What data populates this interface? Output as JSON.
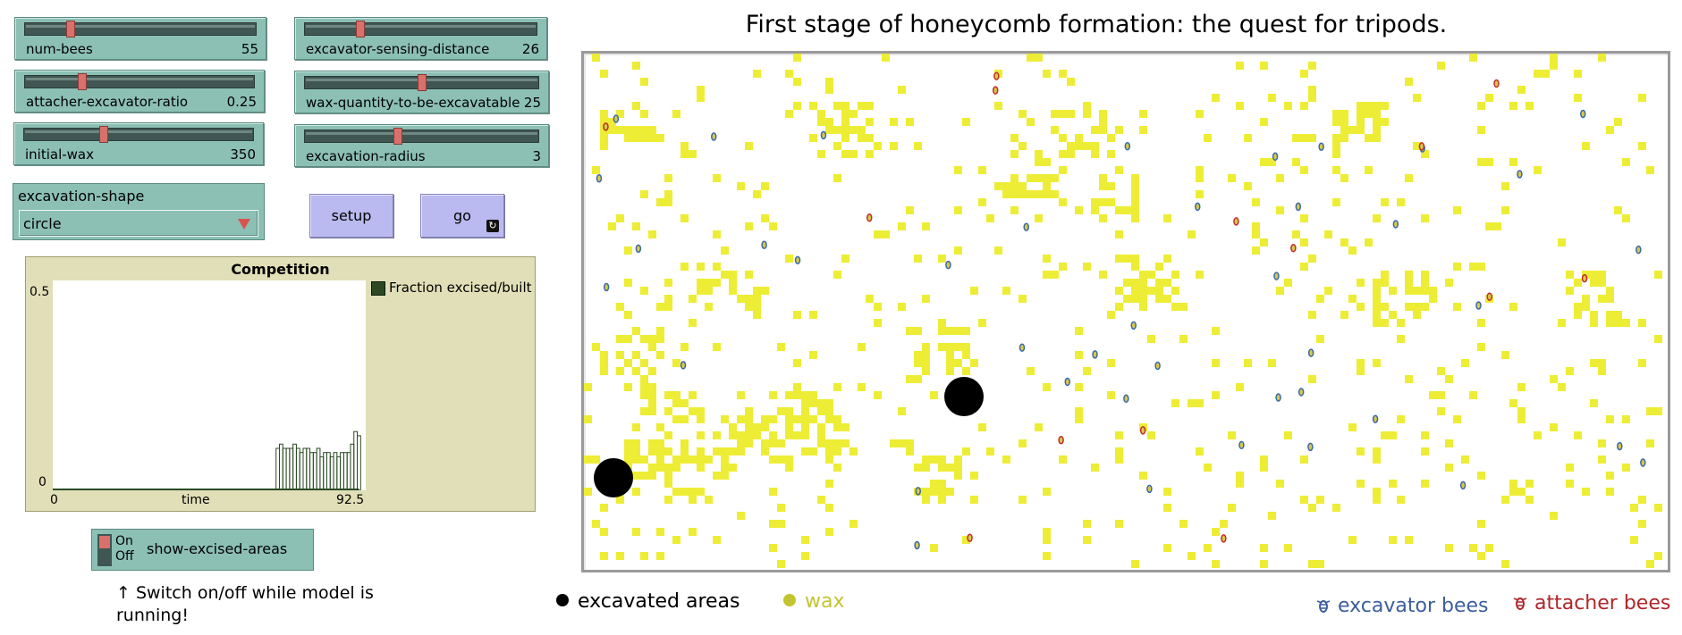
{
  "sliders": [
    {
      "key": "num_bees",
      "name": "num-bees",
      "value": "55",
      "fraction": 0.2
    },
    {
      "key": "excavator_sensing_distance",
      "name": "excavator-sensing-distance",
      "value": "26",
      "fraction": 0.24
    },
    {
      "key": "attacher_excavator_ratio",
      "name": "attacher-excavator-ratio",
      "value": "0.25",
      "fraction": 0.25
    },
    {
      "key": "wax_quantity",
      "name": "wax-quantity-to-be-excavatable",
      "value": "25",
      "fraction": 0.5
    },
    {
      "key": "initial_wax",
      "name": "initial-wax",
      "value": "350",
      "fraction": 0.35
    },
    {
      "key": "excavation_radius",
      "name": "excavation-radius",
      "value": "3",
      "fraction": 0.4
    }
  ],
  "chooser": {
    "label": "excavation-shape",
    "value": "circle"
  },
  "buttons": {
    "setup": "setup",
    "go": "go"
  },
  "plot": {
    "title": "Competition",
    "y_max_label": "0.5",
    "y_min_label": "0",
    "x_min_label": "0",
    "x_label": "time",
    "x_max_label": "92.5",
    "legend": "Fraction excised/built",
    "legend_color": "#2b4a24"
  },
  "chart_data": {
    "type": "bar",
    "title": "Competition",
    "xlabel": "time",
    "ylabel": "",
    "xlim": [
      0,
      92.5
    ],
    "ylim": [
      0,
      0.5
    ],
    "series": [
      {
        "name": "Fraction excised/built",
        "color": "#2b4a24",
        "x": [
          0,
          4,
          8,
          12,
          16,
          20,
          24,
          28,
          32,
          36,
          40,
          44,
          48,
          52,
          56,
          60,
          64,
          66,
          67,
          68,
          69,
          70,
          71,
          72,
          73,
          74,
          75,
          76,
          77,
          78,
          79,
          80,
          81,
          82,
          83,
          84,
          85,
          86,
          87,
          88,
          89,
          90
        ],
        "values": [
          0,
          0,
          0,
          0,
          0,
          0,
          0,
          0,
          0,
          0,
          0,
          0,
          0,
          0,
          0,
          0,
          0,
          0.1,
          0.11,
          0.1,
          0.1,
          0.1,
          0.11,
          0.1,
          0.09,
          0.1,
          0.1,
          0.09,
          0.09,
          0.1,
          0.08,
          0.09,
          0.09,
          0.08,
          0.09,
          0.08,
          0.09,
          0.09,
          0.09,
          0.11,
          0.14,
          0.13
        ]
      }
    ]
  },
  "switch": {
    "on_label": "On",
    "off_label": "Off",
    "name": "show-excised-areas",
    "state": "on"
  },
  "note": "↑ Switch on/off while model is running!",
  "world": {
    "title": "First stage of honeycomb formation: the quest for tripods.",
    "wax_color": "#eded35",
    "excavated_color": "#000000",
    "excavator_color": "#3a6aa8",
    "attacher_color": "#c0302a"
  },
  "legend_world": {
    "excavated": "excavated areas",
    "wax": "wax",
    "excavator": "excavator bees",
    "attacher": "attacher bees",
    "wax_label_color": "#c4c431",
    "excavator_label_color": "#3c5e9e",
    "attacher_label_color": "#b0262a"
  }
}
